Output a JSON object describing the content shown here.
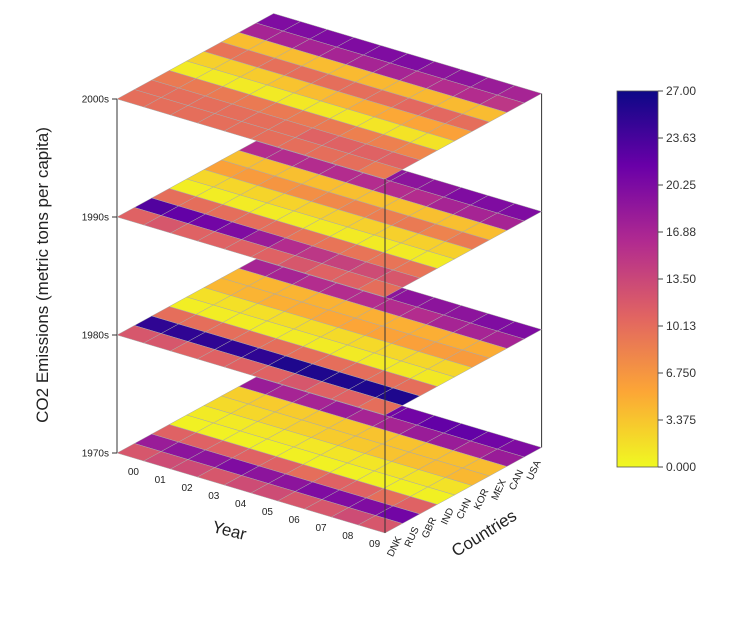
{
  "chart_data": {
    "type": "heatmap",
    "subtype": "stacked-3d-layers",
    "zlabel": "CO2 Emissions (metric tons per capita)",
    "xlabel": "Year",
    "ylabel": "Countries",
    "layers": [
      "1970s",
      "1980s",
      "1990s",
      "2000s"
    ],
    "years": [
      "00",
      "01",
      "02",
      "03",
      "04",
      "05",
      "06",
      "07",
      "08",
      "09"
    ],
    "countries": [
      "DNK",
      "RUS",
      "GBR",
      "IND",
      "CHN",
      "KOR",
      "MEX",
      "CAN",
      "USA"
    ],
    "colorbar": {
      "min": 0,
      "max": 27,
      "ticks": [
        "0.000",
        "3.375",
        "6.750",
        "10.13",
        "13.50",
        "16.88",
        "20.25",
        "23.63",
        "27.00"
      ],
      "colormap": [
        "#f0f921",
        "#fca636",
        "#e16462",
        "#b12a90",
        "#6a00a8",
        "#0d0887"
      ]
    },
    "values": {
      "1970s": [
        [
          12,
          13,
          13,
          12,
          13,
          13,
          12,
          12,
          13,
          12
        ],
        [
          18,
          19,
          19,
          20,
          19,
          19,
          20,
          20,
          20,
          21
        ],
        [
          11,
          11,
          11,
          11,
          11,
          10,
          11,
          11,
          10,
          11
        ],
        [
          0.5,
          0.5,
          0.5,
          0.5,
          0.6,
          0.5,
          0.5,
          0.6,
          0.6,
          0.6
        ],
        [
          1,
          1,
          1.2,
          1.2,
          1.2,
          1.3,
          1.3,
          1.4,
          1.4,
          1.5
        ],
        [
          2,
          2.2,
          2.5,
          2.7,
          3,
          3.2,
          3.5,
          3.8,
          4,
          4.2
        ],
        [
          2.8,
          3,
          3,
          3.2,
          3.3,
          3.5,
          3.6,
          3.7,
          3.8,
          4
        ],
        [
          18,
          17,
          17,
          18,
          17,
          17,
          18,
          18,
          17,
          18
        ],
        [
          21,
          21,
          22,
          22,
          21,
          21,
          22,
          22,
          21,
          20
        ]
      ],
      "1980s": [
        [
          12,
          12,
          11,
          11,
          11,
          11,
          12,
          11,
          11,
          10
        ],
        [
          25,
          25,
          25,
          25,
          25,
          26,
          26,
          26,
          26,
          26
        ],
        [
          10,
          10,
          10,
          10,
          10,
          10,
          10,
          10,
          10,
          10
        ],
        [
          0.7,
          0.8,
          0.8,
          0.8,
          0.9,
          0.9,
          1,
          1,
          1.1,
          1.1
        ],
        [
          1.6,
          1.6,
          1.7,
          1.8,
          1.9,
          2,
          2.1,
          2.2,
          2.2,
          2.3
        ],
        [
          4.3,
          4.5,
          4.8,
          5,
          5.3,
          5.5,
          5.7,
          5.9,
          6.1,
          6.3
        ],
        [
          4.3,
          4.4,
          4.5,
          4.6,
          4.7,
          4.8,
          4.8,
          4.9,
          4.9,
          5
        ],
        [
          17,
          17,
          16,
          16,
          16,
          16,
          16,
          17,
          17,
          17
        ],
        [
          20,
          20,
          19,
          19,
          19,
          19,
          19,
          19,
          20,
          20
        ]
      ],
      "1990s": [
        [
          11,
          12,
          11,
          11,
          11,
          11,
          12,
          11,
          11,
          10
        ],
        [
          23,
          22,
          21,
          20,
          18,
          16,
          15,
          14,
          13,
          12
        ],
        [
          10,
          10,
          10,
          10,
          10,
          9.5,
          9.5,
          9.5,
          9.5,
          9.5
        ],
        [
          0.8,
          0.8,
          0.9,
          0.9,
          0.9,
          1,
          1,
          1,
          1,
          1
        ],
        [
          2.2,
          2.3,
          2.4,
          2.5,
          2.6,
          2.7,
          2.7,
          2.7,
          2.7,
          2.7
        ],
        [
          5.8,
          6.3,
          6.8,
          7.3,
          7.8,
          8.3,
          8.7,
          9,
          8.3,
          9
        ],
        [
          3.8,
          3.9,
          3.8,
          3.9,
          3.8,
          3.7,
          3.7,
          3.8,
          3.8,
          3.9
        ],
        [
          16,
          16,
          16,
          16,
          16,
          16,
          16,
          17,
          17,
          17
        ],
        [
          19,
          19,
          19,
          19,
          19,
          19,
          19,
          20,
          20,
          20
        ]
      ],
      "2000s": [
        [
          10,
          10,
          10,
          10,
          10,
          10,
          10,
          10,
          10,
          9
        ],
        [
          10,
          10,
          10,
          10,
          10,
          10,
          11,
          11,
          11,
          11
        ],
        [
          9,
          9,
          9,
          9,
          9,
          9,
          9,
          8.5,
          8.5,
          8
        ],
        [
          1,
          1,
          1,
          1,
          1.1,
          1.1,
          1.2,
          1.3,
          1.4,
          1.5
        ],
        [
          2.7,
          2.8,
          3,
          3.5,
          4,
          4.5,
          5,
          5.3,
          5.6,
          5.8
        ],
        [
          9.5,
          9.5,
          9.8,
          10,
          10,
          10,
          10,
          10.5,
          10.5,
          10
        ],
        [
          3.9,
          3.9,
          4,
          4,
          4.1,
          4.2,
          4.2,
          4.2,
          4.1,
          4
        ],
        [
          17,
          17,
          17,
          17,
          17,
          17,
          16,
          16,
          16,
          15
        ],
        [
          20,
          20,
          20,
          20,
          20,
          20,
          19,
          19,
          18,
          17
        ]
      ]
    }
  }
}
